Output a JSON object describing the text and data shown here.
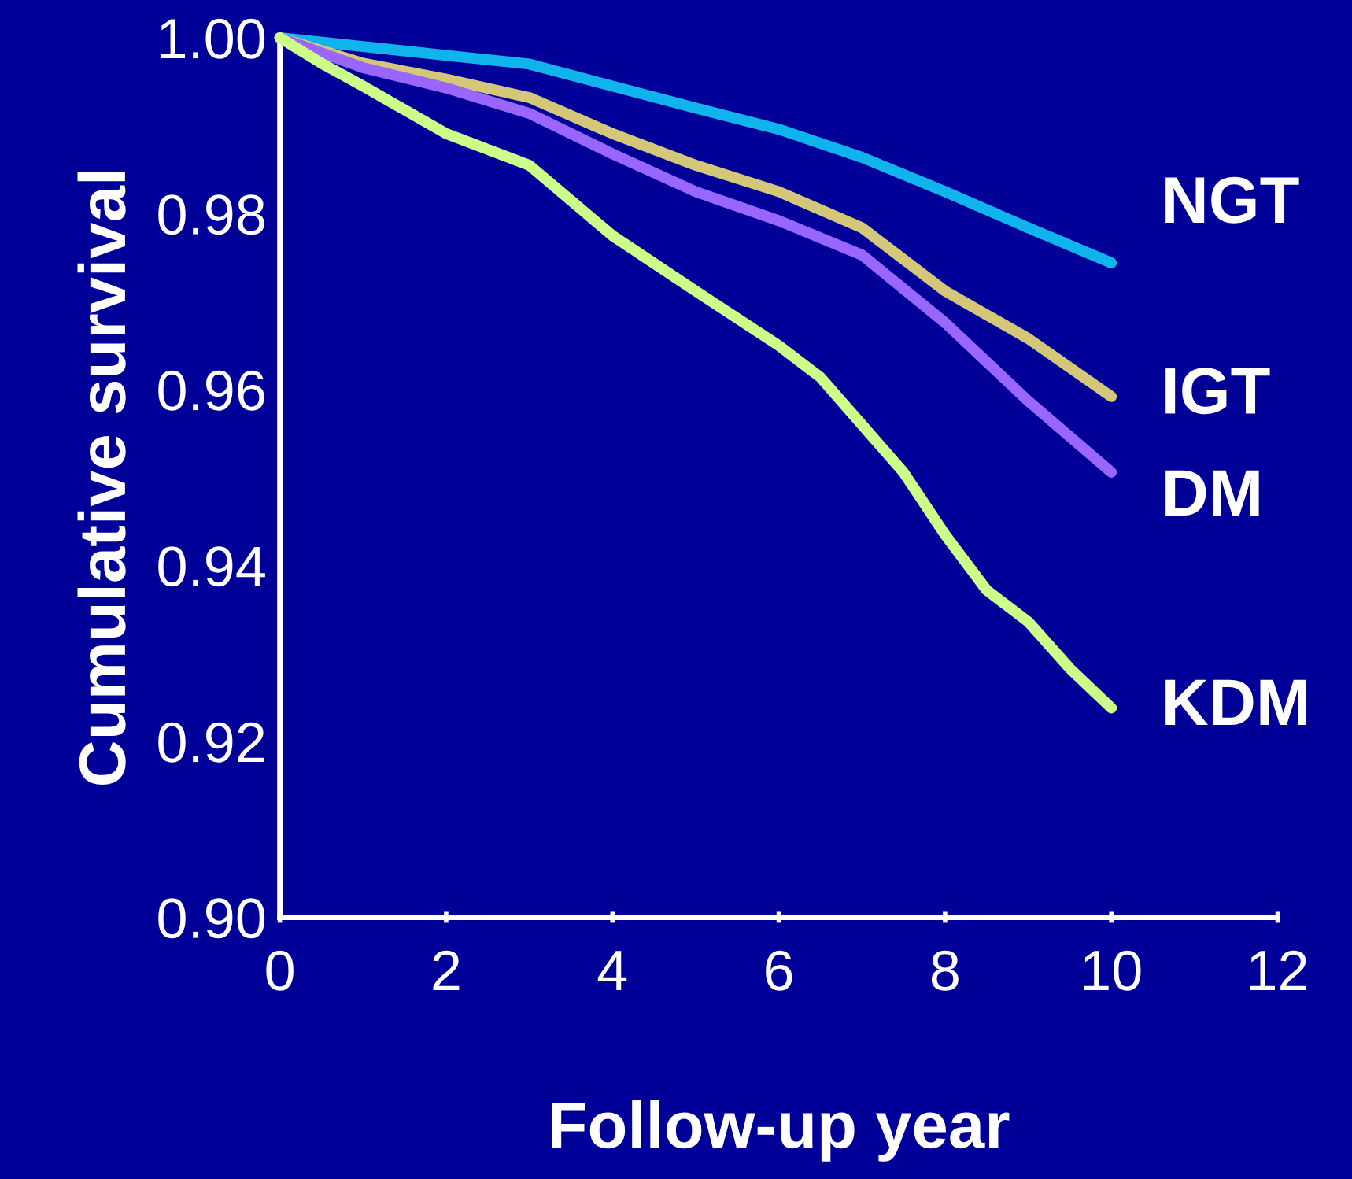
{
  "chart_data": {
    "type": "line",
    "xlabel": "Follow-up year",
    "ylabel": "Cumulative survival",
    "xlim": [
      0,
      12
    ],
    "ylim": [
      0.9,
      1.0
    ],
    "xticks": [
      0,
      2,
      4,
      6,
      8,
      10,
      12
    ],
    "yticks": [
      {
        "value": 0.9,
        "label": "0.90"
      },
      {
        "value": 0.92,
        "label": "0.92"
      },
      {
        "value": 0.94,
        "label": "0.94"
      },
      {
        "value": 0.96,
        "label": "0.96"
      },
      {
        "value": 0.98,
        "label": "0.98"
      },
      {
        "value": 1.0,
        "label": "1.00"
      }
    ],
    "grid": false,
    "legend": false,
    "line_style": "solid",
    "series": [
      {
        "name": "NGT",
        "color": "#10b4ec",
        "x": [
          0,
          1,
          2,
          3,
          4,
          5,
          6,
          7,
          8,
          9,
          10
        ],
        "values": [
          1.0,
          0.999,
          0.998,
          0.997,
          0.9945,
          0.992,
          0.9896,
          0.9864,
          0.9825,
          0.9784,
          0.9744
        ]
      },
      {
        "name": "IGT",
        "color": "#d4c878",
        "x": [
          0,
          1,
          2,
          3,
          4,
          5,
          6,
          7,
          8,
          9,
          10
        ],
        "values": [
          1.0,
          0.9971,
          0.9953,
          0.9932,
          0.9891,
          0.9855,
          0.9825,
          0.9784,
          0.9712,
          0.9658,
          0.9592
        ]
      },
      {
        "name": "DM",
        "color": "#9966ff",
        "x": [
          0,
          1,
          2,
          3,
          4,
          5,
          6,
          7,
          8,
          9,
          10
        ],
        "values": [
          1.0,
          0.9966,
          0.9943,
          0.9914,
          0.9868,
          0.9825,
          0.9792,
          0.9753,
          0.9676,
          0.9587,
          0.9506
        ]
      },
      {
        "name": "KDM",
        "color": "#ccff88",
        "x": [
          0,
          0.5,
          1,
          2,
          3,
          4,
          5,
          6,
          6.5,
          7,
          7.5,
          8,
          8.5,
          9,
          9.5,
          10
        ],
        "values": [
          1.0,
          0.9971,
          0.9945,
          0.9891,
          0.9855,
          0.9775,
          0.9712,
          0.965,
          0.9614,
          0.956,
          0.9506,
          0.9435,
          0.9372,
          0.9336,
          0.9283,
          0.9238
        ]
      }
    ]
  }
}
